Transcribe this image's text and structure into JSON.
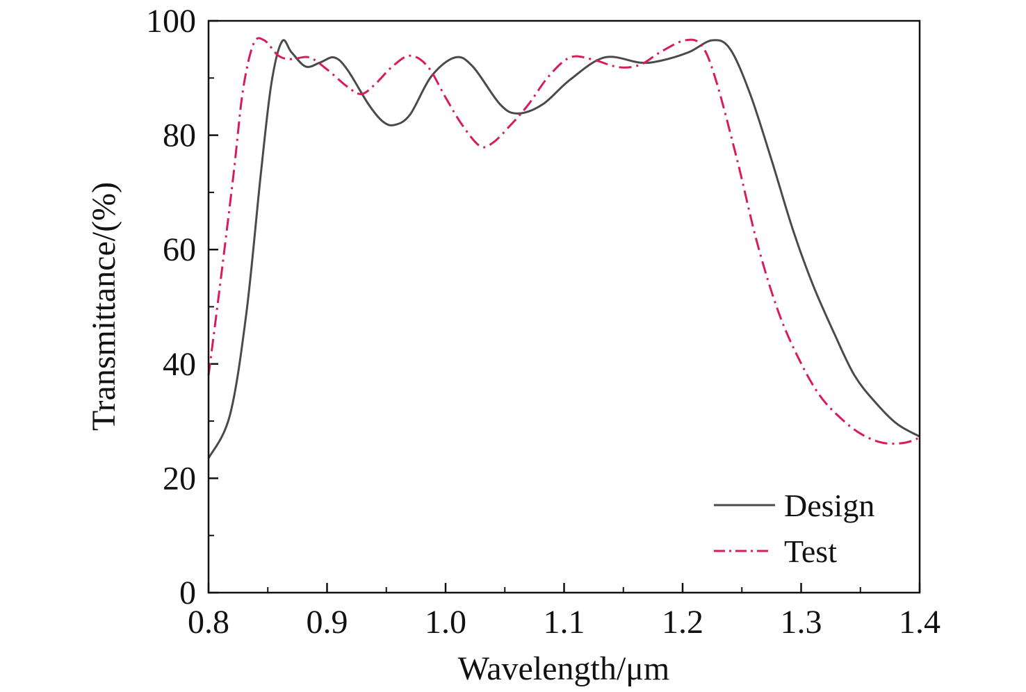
{
  "chart_data": {
    "type": "line",
    "title": "",
    "xlabel": "Wavelength/μm",
    "ylabel": "Transmittance/(%)",
    "xlim": [
      0.8,
      1.4
    ],
    "ylim": [
      0,
      100
    ],
    "xticks": [
      "0.8",
      "0.9",
      "1.0",
      "1.1",
      "1.2",
      "1.3",
      "1.4"
    ],
    "yticks": [
      "0",
      "20",
      "40",
      "60",
      "80",
      "100"
    ],
    "grid": false,
    "legend_position": "bottom-right",
    "series": [
      {
        "name": "Design",
        "style": "solid",
        "color": "#4a4a4a",
        "x": [
          0.8,
          0.818,
          0.832,
          0.844,
          0.853,
          0.862,
          0.87,
          0.882,
          0.894,
          0.906,
          0.917,
          0.935,
          0.947,
          0.957,
          0.97,
          0.988,
          1.008,
          1.023,
          1.046,
          1.061,
          1.082,
          1.105,
          1.134,
          1.164,
          1.181,
          1.205,
          1.225,
          1.24,
          1.257,
          1.275,
          1.293,
          1.31,
          1.328,
          1.345,
          1.363,
          1.381,
          1.4
        ],
        "y": [
          23.5,
          31,
          49,
          73,
          89,
          96.4,
          94.5,
          92,
          92.7,
          93.6,
          91.5,
          85.4,
          82.4,
          81.8,
          83.6,
          90.3,
          93.6,
          92,
          85.4,
          83.8,
          85.4,
          89.7,
          93.6,
          92.7,
          93,
          94.5,
          96.6,
          95.1,
          87.2,
          75.7,
          63.5,
          53.8,
          45.3,
          38,
          33.2,
          29.5,
          27.3
        ]
      },
      {
        "name": "Test",
        "style": "dash-dot",
        "color": "#d81b5a",
        "x": [
          0.8,
          0.809,
          0.821,
          0.829,
          0.838,
          0.847,
          0.859,
          0.87,
          0.885,
          0.9,
          0.917,
          0.929,
          0.941,
          0.955,
          0.97,
          0.985,
          1.0,
          1.014,
          1.029,
          1.04,
          1.055,
          1.07,
          1.087,
          1.105,
          1.123,
          1.146,
          1.164,
          1.181,
          1.202,
          1.216,
          1.228,
          1.246,
          1.263,
          1.281,
          1.299,
          1.316,
          1.334,
          1.351,
          1.369,
          1.387,
          1.4
        ],
        "y": [
          38,
          52.6,
          73,
          87.8,
          96,
          96.6,
          93.9,
          93.3,
          93.6,
          91.5,
          88.5,
          87.2,
          89,
          92,
          93.9,
          92,
          86.6,
          81.8,
          78.1,
          78.7,
          81.8,
          85.4,
          90.3,
          93.6,
          93.3,
          91.9,
          92.3,
          94.5,
          96.6,
          95.7,
          89.7,
          75.7,
          61.1,
          49,
          40.5,
          34.4,
          30.4,
          27.7,
          26.2,
          26.2,
          27.1
        ]
      }
    ]
  }
}
